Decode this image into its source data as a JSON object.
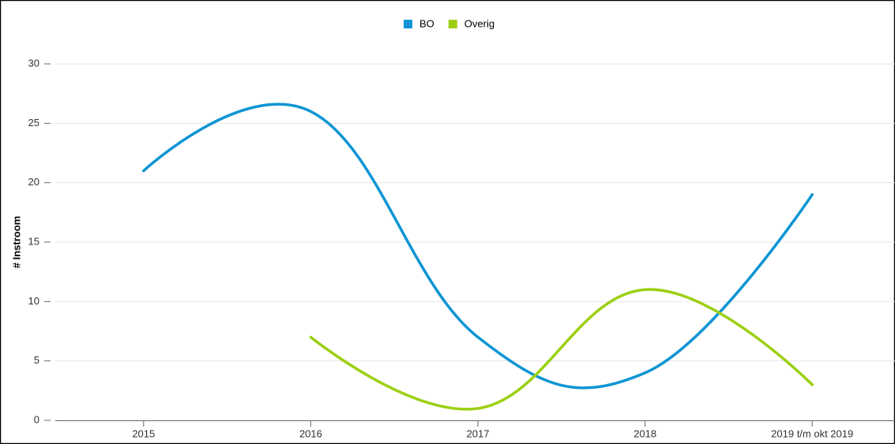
{
  "chart_data": {
    "type": "line",
    "y_label": "# Instroom",
    "categories": [
      "2015",
      "2016",
      "2017",
      "2018",
      "2019 t/m okt 2019"
    ],
    "series": [
      {
        "name": "BO",
        "color": "#0d95d4",
        "values": [
          21,
          26,
          7,
          4,
          19
        ]
      },
      {
        "name": "Overig",
        "color": "#9ccf12",
        "values": [
          null,
          7,
          1,
          11,
          3
        ]
      }
    ],
    "ylim": [
      0,
      30
    ],
    "yticks": [
      0,
      5,
      10,
      15,
      20,
      25,
      30
    ],
    "grid": true,
    "smooth": true,
    "legend": "top"
  }
}
